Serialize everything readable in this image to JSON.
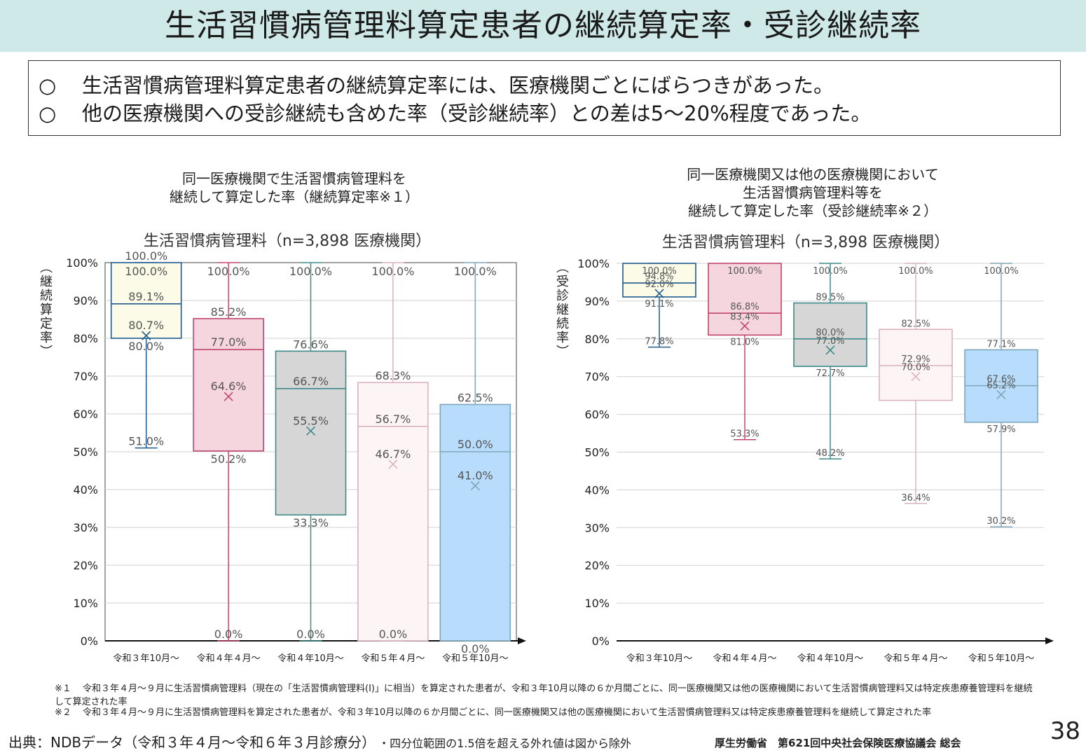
{
  "title": "生活習慣病管理料算定患者の継続算定率・受診継続率",
  "summary": {
    "bullet1": "○",
    "line1": "生活習慣病管理料算定患者の継続算定率には、医療機関ごとにばらつきがあった。",
    "bullet2": "○",
    "line2": "他の医療機関への受診継続も含めた率（受診継続率）との差は5～20%程度であった。"
  },
  "left_chart": {
    "heading_line1": "同一医療機関で生活習慣病管理料を",
    "heading_line2": "継続して算定した率（継続算定率※１）",
    "ylabel": "（継続算定率）"
  },
  "right_chart": {
    "heading_line1": "同一医療機関又は他の医療機関において",
    "heading_line2": "生活習慣病管理料等を",
    "heading_line3": "継続して算定した率（受診継続率※２）",
    "ylabel": "（受診継続率）"
  },
  "chart_data": [
    {
      "type": "boxplot",
      "title": "生活習慣病管理料（n=3,898 医療機関）",
      "ylabel": "（継続算定率）",
      "ylim": [
        0,
        100
      ],
      "yticks": [
        "0%",
        "10%",
        "20%",
        "30%",
        "40%",
        "50%",
        "60%",
        "70%",
        "80%",
        "90%",
        "100%"
      ],
      "categories": [
        "令和３年10月～",
        "令和４年４月～",
        "令和４年10月～",
        "令和５年４月～",
        "令和５年10月～"
      ],
      "boxes": [
        {
          "name": "令和３年10月～",
          "min": 51.0,
          "q1": 80.0,
          "median": 89.1,
          "q3": 100.0,
          "max": 100.0,
          "mean": 80.7,
          "labels": {
            "max": "100.0%",
            "q3": "100.0%",
            "median": "89.1%",
            "mean": "80.7%",
            "q1": "80.0%",
            "min": "51.0%"
          },
          "stroke": "#1f5a8c",
          "fill": "#fbfbe8"
        },
        {
          "name": "令和４年４月～",
          "min": 0.0,
          "q1": 50.2,
          "median": 77.0,
          "q3": 85.2,
          "max": 100.0,
          "mean": 64.6,
          "labels": {
            "max": "100.0%",
            "q3": "85.2%",
            "median": "77.0%",
            "mean": "64.6%",
            "q1": "50.2%",
            "min": "0.0%"
          },
          "stroke": "#c0466e",
          "fill": "#f5d6df"
        },
        {
          "name": "令和４年10月～",
          "min": 0.0,
          "q1": 33.3,
          "median": 66.7,
          "q3": 76.6,
          "max": 100.0,
          "mean": 55.5,
          "labels": {
            "max": "100.0%",
            "q3": "76.6%",
            "median": "66.7%",
            "mean": "55.5%",
            "q1": "33.3%",
            "min": "0.0%"
          },
          "stroke": "#3e8a8a",
          "fill": "#d6d6d6"
        },
        {
          "name": "令和５年４月～",
          "min": 0.0,
          "q1": 0.0,
          "median": 56.7,
          "q3": 68.3,
          "max": 100.0,
          "mean": 46.7,
          "labels": {
            "max": "100.0%",
            "q3": "68.3%",
            "median": "56.7%",
            "mean": "46.7%",
            "q1": "",
            "min": "0.0%"
          },
          "stroke": "#d9b3bd",
          "fill": "#fdf5f5"
        },
        {
          "name": "令和５年10月～",
          "min": 0.0,
          "q1": 0.0,
          "median": 50.0,
          "q3": 62.5,
          "max": 100.0,
          "mean": 41.0,
          "labels": {
            "max": "100.0%",
            "q3": "62.5%",
            "median": "50.0%",
            "mean": "41.0%",
            "q1": "0.0%",
            "min": ""
          },
          "stroke": "#7fa6bb",
          "fill": "#b8dcfb"
        }
      ]
    },
    {
      "type": "boxplot",
      "title": "生活習慣病管理料（n=3,898 医療機関）",
      "ylabel": "（受診継続率）",
      "ylim": [
        0,
        100
      ],
      "yticks": [
        "0%",
        "10%",
        "20%",
        "30%",
        "40%",
        "50%",
        "60%",
        "70%",
        "80%",
        "90%",
        "100%"
      ],
      "categories": [
        "令和３年10月～",
        "令和４年４月～",
        "令和４年10月～",
        "令和５年４月～",
        "令和５年10月～"
      ],
      "boxes": [
        {
          "name": "令和３年10月～",
          "min": 77.8,
          "q1": 91.1,
          "median": 94.8,
          "q3": 100.0,
          "max": 100.0,
          "mean": 92.0,
          "labels": {
            "max": "100.0%",
            "q3": "",
            "median": "94.8%",
            "mean": "92.0%",
            "q1": "91.1%",
            "min": "77.8%"
          },
          "stroke": "#1f5a8c",
          "fill": "#fbfbe8"
        },
        {
          "name": "令和４年４月～",
          "min": 53.3,
          "q1": 81.0,
          "median": 86.8,
          "q3": 100.0,
          "max": 100.0,
          "mean": 83.4,
          "labels": {
            "max": "100.0%",
            "q3": "",
            "median": "86.8%",
            "mean": "83.4%",
            "q1": "81.0%",
            "min": "53.3%"
          },
          "stroke": "#c0466e",
          "fill": "#f5d6df"
        },
        {
          "name": "令和４年10月～",
          "min": 48.2,
          "q1": 72.7,
          "median": 80.0,
          "q3": 89.5,
          "max": 100.0,
          "mean": 77.0,
          "labels": {
            "max": "100.0%",
            "q3": "89.5%",
            "median": "80.0%",
            "mean": "77.0%",
            "q1": "72.7%",
            "min": "48.2%"
          },
          "stroke": "#3e8a8a",
          "fill": "#d6d6d6"
        },
        {
          "name": "令和５年４月～",
          "min": 36.4,
          "q1": 63.7,
          "median": 72.9,
          "q3": 82.5,
          "max": 100.0,
          "mean": 70.0,
          "labels": {
            "max": "100.0%",
            "q3": "82.5%",
            "median": "72.9%",
            "mean": "70.0%",
            "q1": "",
            "min": "36.4%"
          },
          "stroke": "#d9b3bd",
          "fill": "#fdf5f5"
        },
        {
          "name": "令和５年10月～",
          "min": 30.2,
          "q1": 57.9,
          "median": 67.6,
          "q3": 77.1,
          "max": 100.0,
          "mean": 65.2,
          "labels": {
            "max": "100.0%",
            "q3": "77.1%",
            "median": "67.6%",
            "mean": "65.2%",
            "q1": "57.9%",
            "min": "30.2%"
          },
          "stroke": "#7fa6bb",
          "fill": "#b8dcfb"
        }
      ]
    }
  ],
  "footnotes": {
    "mark1": "※１",
    "note1": "令和３年４月～９月に生活習慣病管理料（現在の「生活習慣病管理料(Ⅰ)」に相当）を算定された患者が、令和３年10月以降の６か月間ごとに、同一医療機関又は他の医療機関において生活習慣病管理料又は特定疾患療養管理料を継続して算定された率",
    "mark2": "※２",
    "note2": "令和３年４月～９月に生活習慣病管理料を算定された患者が、令和３年10月以降の６か月間ごとに、同一医療機関又は他の医療機関において生活習慣病管理料又は特定疾患療養管理料を継続して算定された率"
  },
  "source": "出典：NDBデータ（令和３年４月～令和６年３月診療分）",
  "exclusion": "・四分位範囲の1.5倍を超える外れ値は図から除外",
  "organization": "厚生労働省　第621回中央社会保険医療協議会 総会",
  "page_number": "38"
}
